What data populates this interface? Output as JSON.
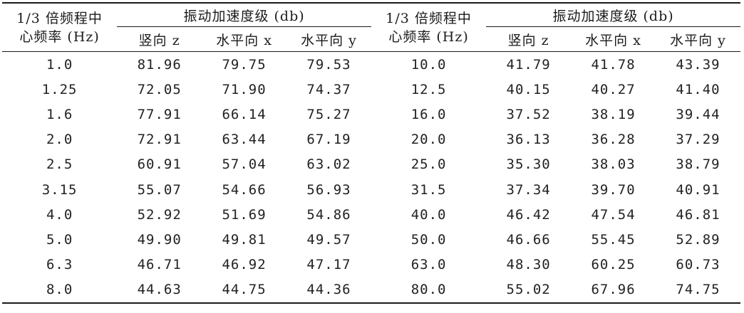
{
  "table": {
    "headers": {
      "freq": "1/3 倍频程中\n心频率 (Hz)",
      "group": "振动加速度级 (db)",
      "sub": [
        "竖向 z",
        "水平向 x",
        "水平向 y"
      ]
    },
    "rows": [
      [
        "1.0",
        "81.96",
        "79.75",
        "79.53",
        "10.0",
        "41.79",
        "41.78",
        "43.39"
      ],
      [
        "1.25",
        "72.05",
        "71.90",
        "74.37",
        "12.5",
        "40.15",
        "40.27",
        "41.40"
      ],
      [
        "1.6",
        "77.91",
        "66.14",
        "75.27",
        "16.0",
        "37.52",
        "38.19",
        "39.44"
      ],
      [
        "2.0",
        "72.91",
        "63.44",
        "67.19",
        "20.0",
        "36.13",
        "36.28",
        "37.29"
      ],
      [
        "2.5",
        "60.91",
        "57.04",
        "63.02",
        "25.0",
        "35.30",
        "38.03",
        "38.79"
      ],
      [
        "3.15",
        "55.07",
        "54.66",
        "56.93",
        "31.5",
        "37.34",
        "39.70",
        "40.91"
      ],
      [
        "4.0",
        "52.92",
        "51.69",
        "54.86",
        "40.0",
        "46.42",
        "47.54",
        "46.81"
      ],
      [
        "5.0",
        "49.90",
        "49.81",
        "49.57",
        "50.0",
        "46.66",
        "55.45",
        "52.89"
      ],
      [
        "6.3",
        "46.71",
        "46.92",
        "47.17",
        "63.0",
        "48.30",
        "60.25",
        "60.73"
      ],
      [
        "8.0",
        "44.63",
        "44.75",
        "44.36",
        "80.0",
        "55.02",
        "67.96",
        "74.75"
      ]
    ]
  }
}
